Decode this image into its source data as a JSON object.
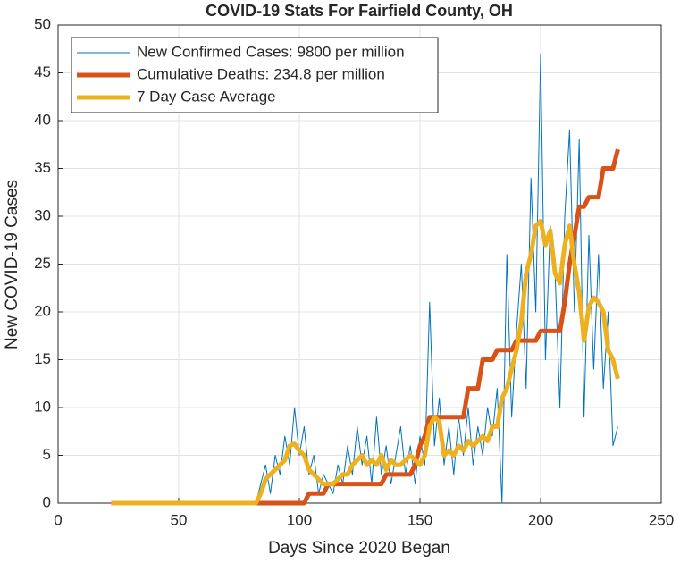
{
  "chart_data": {
    "type": "line",
    "title": "COVID-19 Stats For Fairfield County, OH",
    "xlabel": "Days Since 2020 Began",
    "ylabel": "New COVID-19 Cases",
    "x": [
      22,
      24,
      26,
      28,
      30,
      32,
      34,
      36,
      38,
      40,
      42,
      44,
      46,
      48,
      50,
      52,
      54,
      56,
      58,
      60,
      62,
      64,
      66,
      68,
      70,
      72,
      74,
      76,
      78,
      80,
      82,
      84,
      86,
      88,
      90,
      92,
      94,
      96,
      98,
      100,
      102,
      104,
      106,
      108,
      110,
      112,
      114,
      116,
      118,
      120,
      122,
      124,
      126,
      128,
      130,
      132,
      134,
      136,
      138,
      140,
      142,
      144,
      146,
      148,
      150,
      152,
      154,
      156,
      158,
      160,
      162,
      164,
      166,
      168,
      170,
      172,
      174,
      176,
      178,
      180,
      182,
      184,
      186,
      188,
      190,
      192,
      194,
      196,
      198,
      200,
      202,
      204,
      206,
      208,
      210,
      212,
      214,
      216,
      218,
      220,
      222,
      224,
      226,
      228,
      230,
      232
    ],
    "series": [
      {
        "name": "New Confirmed Cases: 9800 per million",
        "color": "#0072BD",
        "width": 1,
        "values": [
          0,
          0,
          0,
          0,
          0,
          0,
          0,
          0,
          0,
          0,
          0,
          0,
          0,
          0,
          0,
          0,
          0,
          0,
          0,
          0,
          0,
          0,
          0,
          0,
          0,
          0,
          0,
          0,
          0,
          0,
          0,
          2,
          4,
          1,
          5,
          3,
          7,
          4,
          10,
          5,
          8,
          3,
          5,
          1,
          3,
          2,
          1,
          4,
          2,
          6,
          3,
          8,
          4,
          7,
          2,
          9,
          3,
          6,
          2,
          5,
          8,
          3,
          6,
          2,
          7,
          4,
          21,
          6,
          11,
          4,
          8,
          3,
          9,
          5,
          10,
          4,
          8,
          5,
          10,
          7,
          12,
          0,
          26,
          9,
          18,
          25,
          12,
          34,
          20,
          47,
          15,
          29,
          24,
          10,
          30,
          39,
          20,
          38,
          9,
          28,
          14,
          26,
          12,
          20,
          6,
          8
        ]
      },
      {
        "name": "Cumulative Deaths: 234.8 per million",
        "color": "#D95319",
        "width": 5,
        "values": [
          0,
          0,
          0,
          0,
          0,
          0,
          0,
          0,
          0,
          0,
          0,
          0,
          0,
          0,
          0,
          0,
          0,
          0,
          0,
          0,
          0,
          0,
          0,
          0,
          0,
          0,
          0,
          0,
          0,
          0,
          0,
          0,
          0,
          0,
          0,
          0,
          0,
          0,
          0,
          0,
          0,
          1,
          1,
          1,
          1,
          2,
          2,
          2,
          2,
          2,
          2,
          2,
          2,
          2,
          2,
          2,
          2,
          3,
          3,
          3,
          3,
          3,
          3,
          4,
          6,
          7,
          9,
          9,
          9,
          9,
          9,
          9,
          9,
          9,
          12,
          12,
          12,
          15,
          15,
          15,
          16,
          16,
          16,
          16,
          17,
          17,
          17,
          17,
          17,
          18,
          18,
          18,
          18,
          18,
          21,
          25,
          28,
          31,
          31,
          32,
          32,
          32,
          35,
          35,
          35,
          37
        ]
      },
      {
        "name": "7 Day Case Average",
        "color": "#EDB120",
        "width": 5,
        "values": [
          0,
          0,
          0,
          0,
          0,
          0,
          0,
          0,
          0,
          0,
          0,
          0,
          0,
          0,
          0,
          0,
          0,
          0,
          0,
          0,
          0,
          0,
          0,
          0,
          0,
          0,
          0,
          0,
          0,
          0,
          0,
          1,
          2.5,
          3,
          3.5,
          4,
          4.5,
          6,
          6.2,
          5.5,
          5,
          3.5,
          3,
          2.5,
          2,
          2,
          2,
          2.5,
          3,
          3,
          4,
          4.5,
          5,
          4,
          4.5,
          4,
          5,
          3.5,
          4.5,
          4,
          4,
          4.5,
          5,
          4.5,
          4,
          5,
          8,
          9,
          8.5,
          5,
          5.5,
          5,
          6,
          5.5,
          6.5,
          6,
          6.5,
          7,
          6.5,
          8,
          8,
          11,
          12,
          14,
          16,
          19,
          24,
          26,
          29,
          29.5,
          27,
          28.5,
          24,
          23,
          27,
          29,
          25,
          22,
          17,
          20.5,
          21.5,
          21,
          20,
          16,
          15,
          13
        ]
      }
    ],
    "xlim": [
      0,
      250
    ],
    "xticks": [
      0,
      50,
      100,
      150,
      200,
      250
    ],
    "ylim": [
      0,
      50
    ],
    "yticks": [
      0,
      5,
      10,
      15,
      20,
      25,
      30,
      35,
      40,
      45,
      50
    ],
    "grid": true,
    "legend": "upper-left"
  }
}
